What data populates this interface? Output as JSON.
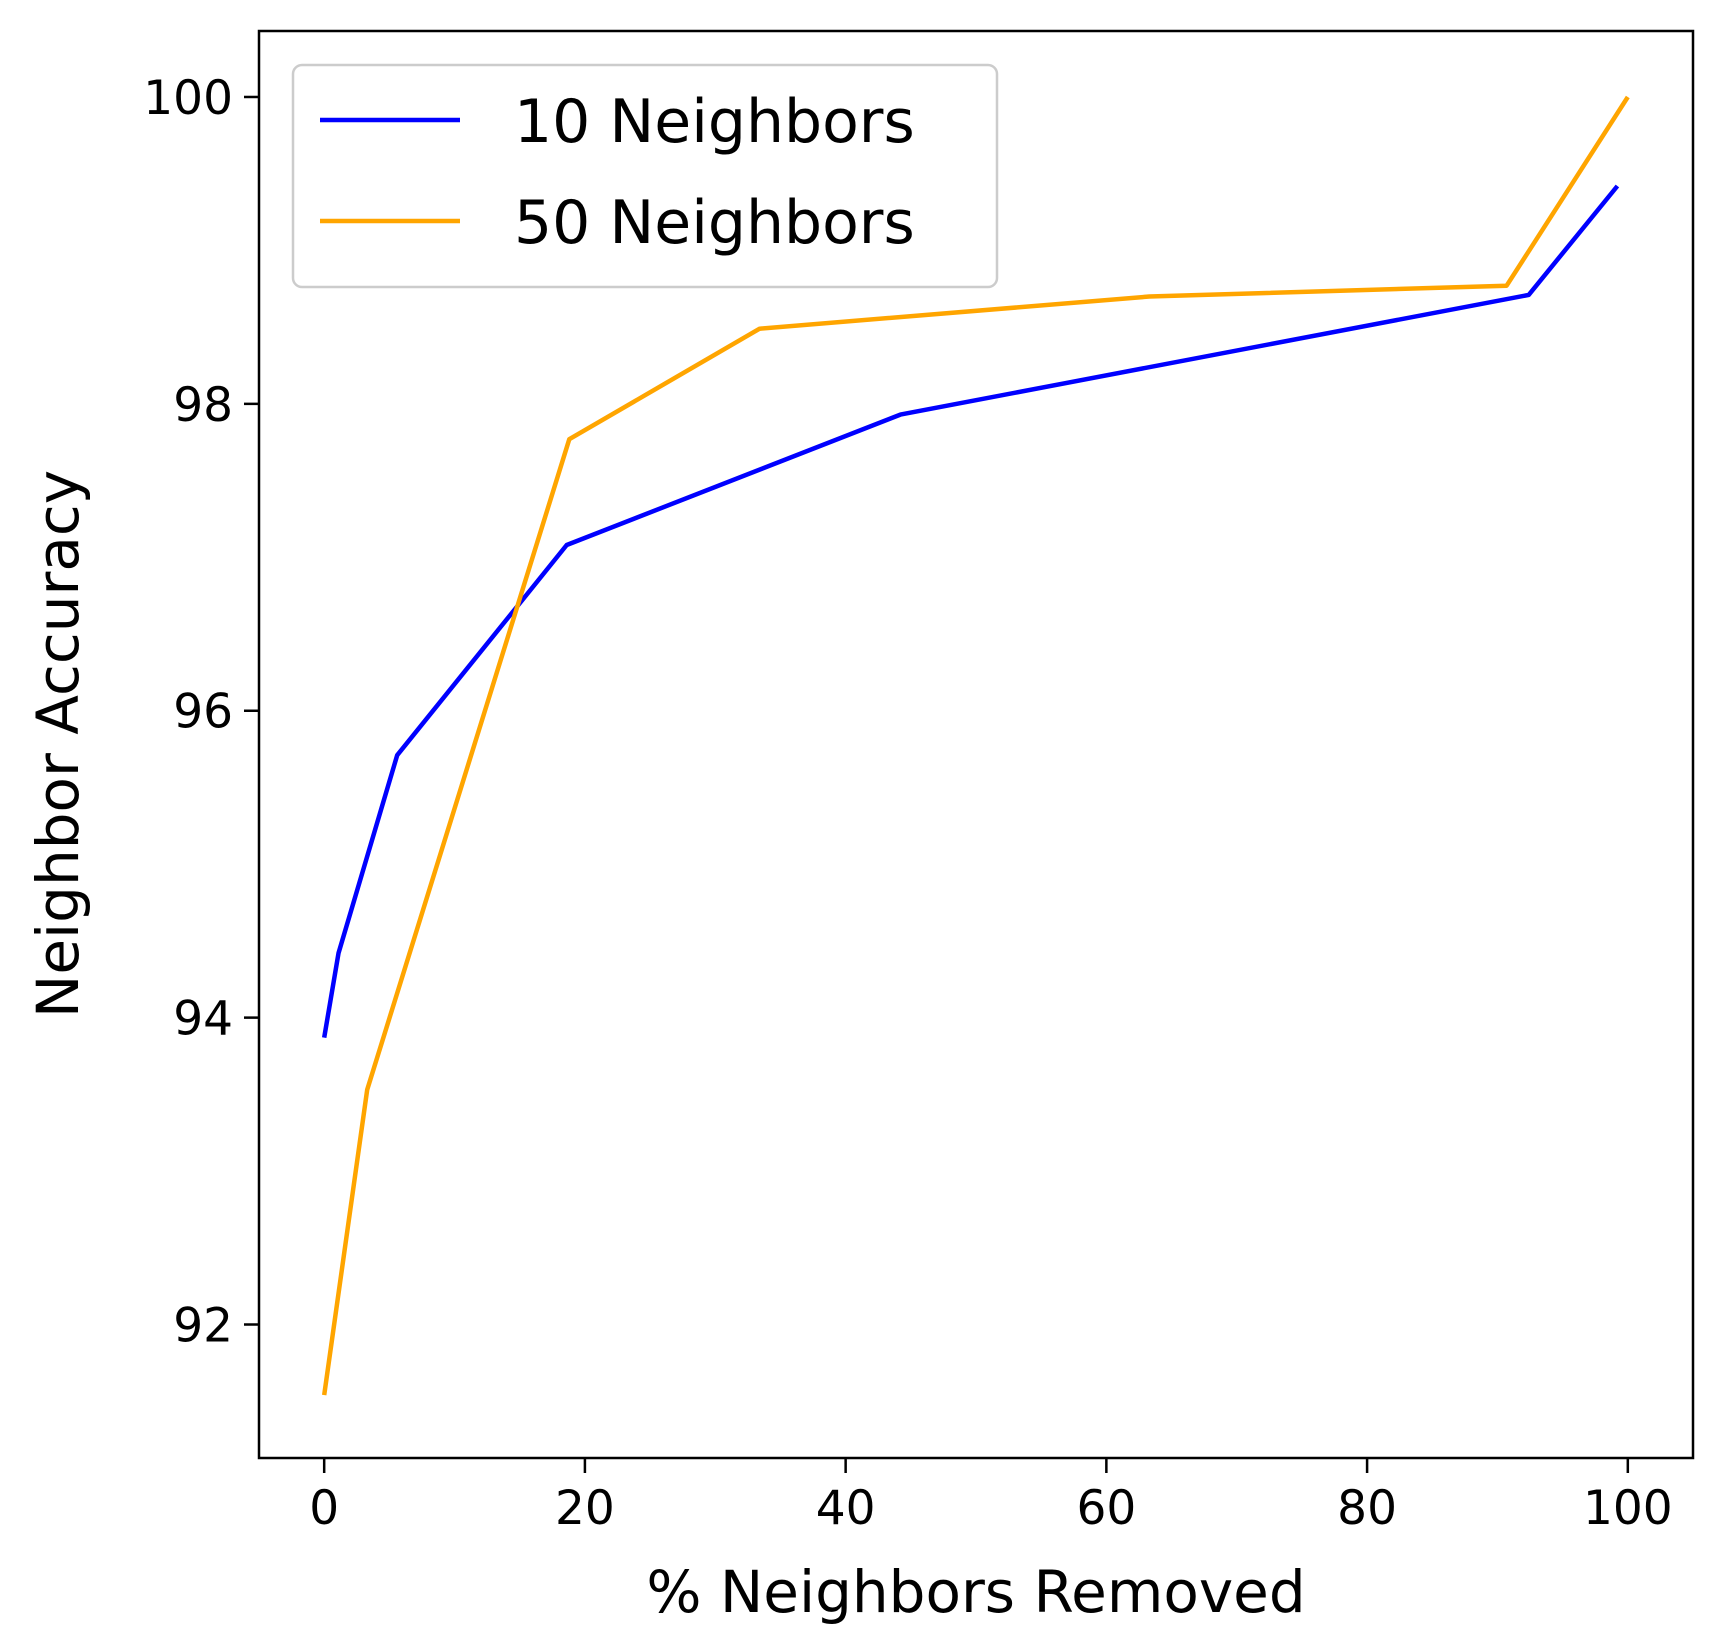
{
  "chart_data": {
    "type": "line",
    "title": "",
    "xlabel": "% Neighbors Removed",
    "ylabel": "Neighbor Accuracy",
    "xlim": [
      -5,
      105
    ],
    "ylim": [
      91.13,
      100.43
    ],
    "xticks": [
      0,
      20,
      40,
      60,
      80,
      100
    ],
    "yticks": [
      92,
      94,
      96,
      98,
      100
    ],
    "xtick_labels": [
      "0",
      "20",
      "40",
      "60",
      "80",
      "100"
    ],
    "ytick_labels": [
      "92",
      "94",
      "96",
      "98",
      "100"
    ],
    "grid": false,
    "legend_position": "top-left",
    "series": [
      {
        "name": "10 Neighbors",
        "color": "#0000ff",
        "x": [
          0,
          1.1,
          5.6,
          18.6,
          44.2,
          92.4,
          99.2
        ],
        "y": [
          93.87,
          94.42,
          95.71,
          97.08,
          97.93,
          98.71,
          99.42
        ]
      },
      {
        "name": "50 Neighbors",
        "color": "#ffa500",
        "x": [
          0,
          3.3,
          18.8,
          33.4,
          63.3,
          90.7,
          100
        ],
        "y": [
          91.54,
          93.53,
          97.77,
          98.49,
          98.7,
          98.77,
          100.0
        ]
      }
    ]
  }
}
